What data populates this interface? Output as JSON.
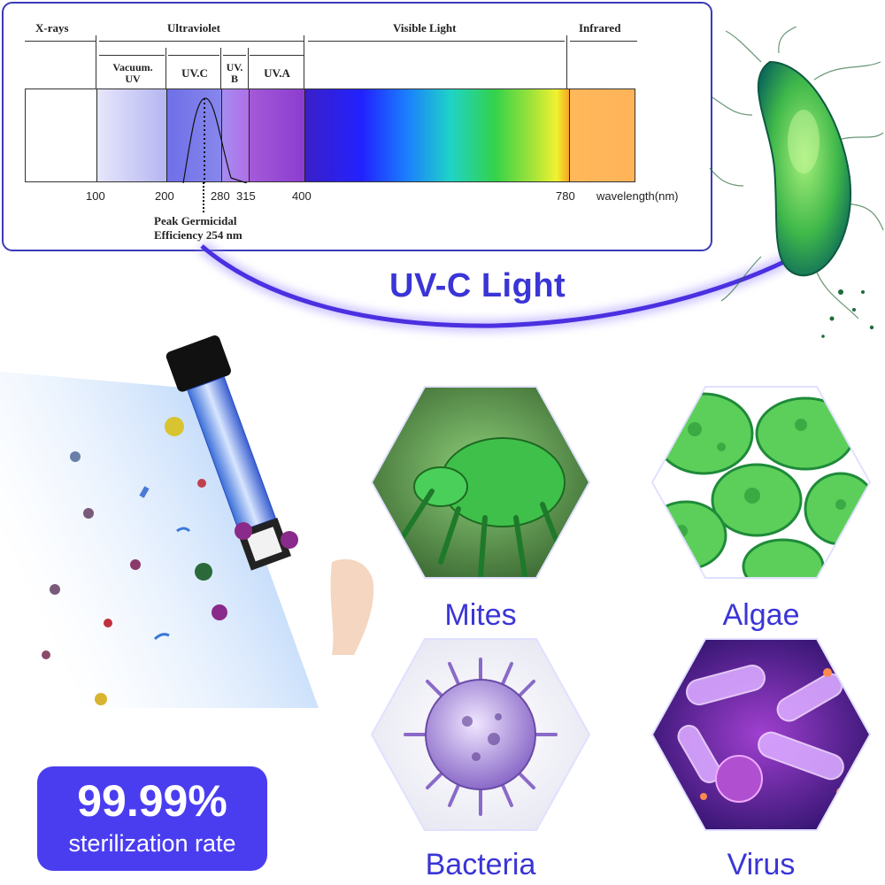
{
  "spectrum": {
    "regions": {
      "xrays": "X-rays",
      "ultraviolet": "Ultraviolet",
      "visible": "Visible Light",
      "infrared": "Infrared"
    },
    "subregions": {
      "vacuum_uv": "Vacuum.\nUV",
      "uvc": "UV.C",
      "uvb": "UV.\nB",
      "uva": "UV.A"
    },
    "ticks": [
      "100",
      "200",
      "280",
      "315",
      "400",
      "780"
    ],
    "axis_label": "wavelength(nm)",
    "peak_note_line1": "Peak Germicidal",
    "peak_note_line2": "Efficiency 254 nm"
  },
  "headline": "UV-C Light",
  "targets": [
    {
      "label": "Mites",
      "icon": "mite-icon"
    },
    {
      "label": "Algae",
      "icon": "algae-cells-icon"
    },
    {
      "label": "Bacteria",
      "icon": "bacteria-icon"
    },
    {
      "label": "Virus",
      "icon": "virus-icon"
    }
  ],
  "badge": {
    "value": "99.99%",
    "text": "sterilization rate"
  },
  "colors": {
    "accent": "#3a35d6",
    "badge": "#4a3df0",
    "uv_beam": "#5a3df0"
  }
}
